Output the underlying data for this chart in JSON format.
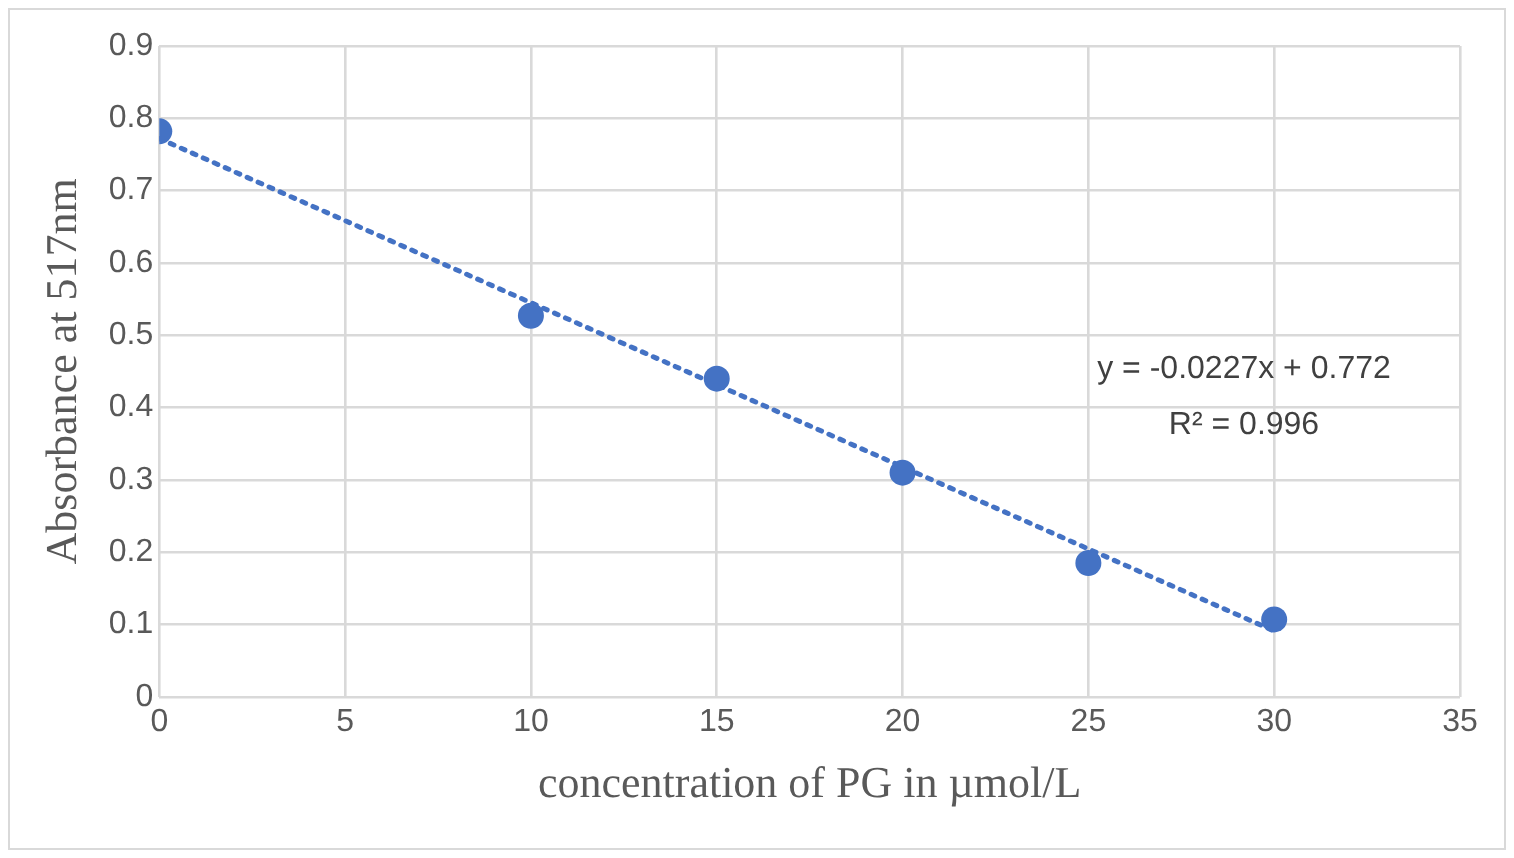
{
  "chart_data": {
    "type": "scatter",
    "xlabel": "concentration of PG in µmol/L",
    "ylabel": "Absorbance at 517nm",
    "xlim": [
      0,
      35
    ],
    "xticks": [
      0,
      5,
      10,
      15,
      20,
      25,
      30,
      35
    ],
    "ylim": [
      0,
      0.9
    ],
    "yticks": [
      0,
      0.1,
      0.2,
      0.3,
      0.4,
      0.5,
      0.6,
      0.7,
      0.8,
      0.9
    ],
    "grid": true,
    "legend": false,
    "marker": "circle",
    "series": [
      {
        "type": "scatter",
        "color": "#4472c4",
        "x": [
          0,
          10,
          15,
          20,
          25,
          30
        ],
        "values": [
          0.782,
          0.527,
          0.44,
          0.31,
          0.185,
          0.107
        ]
      },
      {
        "type": "line",
        "color": "#4472c4",
        "line_style": "dotted",
        "marker": "none",
        "x": [
          0,
          30
        ],
        "values": [
          0.772,
          0.091
        ]
      }
    ],
    "annotations": [
      "y = -0.0227x + 0.772",
      "R² = 0.996"
    ]
  }
}
